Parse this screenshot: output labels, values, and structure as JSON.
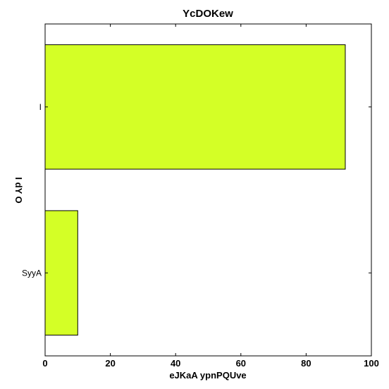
{
  "chart_data": {
    "type": "bar",
    "orientation": "horizontal",
    "title": "YcDOKew",
    "xlabel": "eJKaA ypnPQUve",
    "ylabel": "I dY O",
    "categories": [
      "SyyA",
      "I"
    ],
    "values": [
      10,
      92
    ],
    "xlim": [
      0,
      100
    ],
    "xticks": [
      0,
      20,
      40,
      60,
      80,
      100
    ],
    "grid": false,
    "bar_color": "#d4ff26",
    "edge_color": "#000000"
  }
}
